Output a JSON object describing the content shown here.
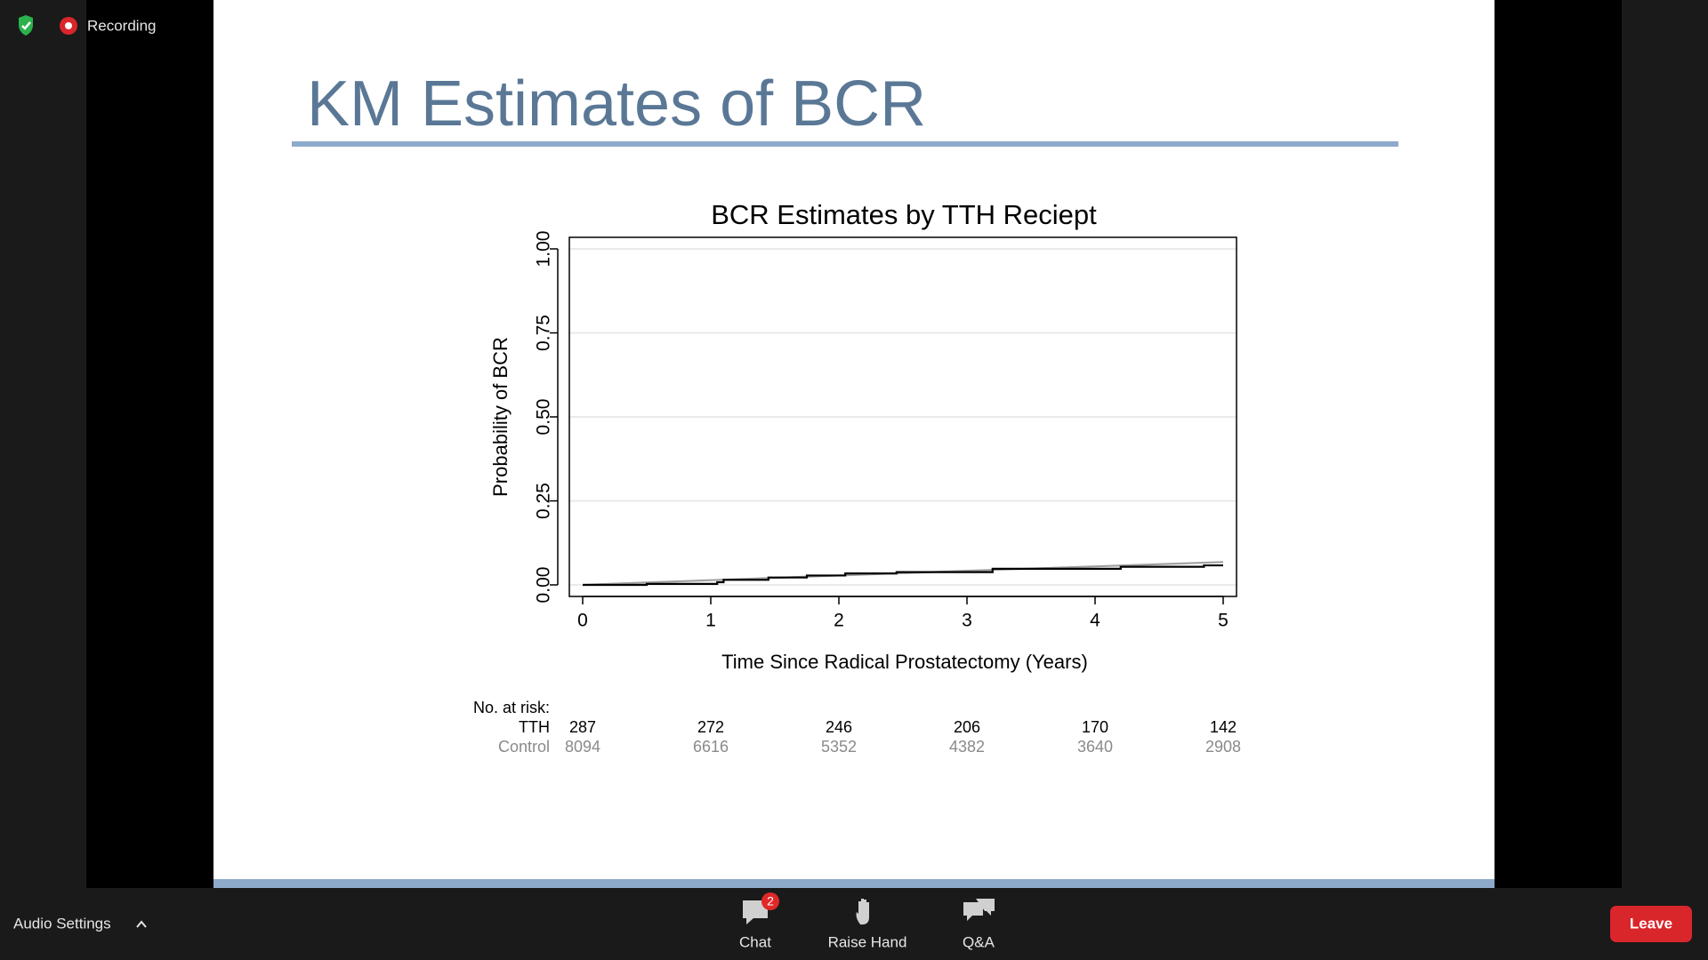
{
  "toolbar": {
    "recording": "Recording",
    "audio": "Audio Settings",
    "chat": "Chat",
    "chat_badge": 2,
    "raise_hand": "Raise Hand",
    "qa": "Q&A",
    "leave": "Leave"
  },
  "slide": {
    "title": "KM Estimates of BCR"
  },
  "risk_heading": "No. at risk:",
  "chart_data": {
    "type": "line",
    "title": "BCR Estimates by TTH Reciept",
    "x_label": "Time Since Radical Prostatectomy (Years)",
    "y_label": "Probability of BCR",
    "xlim": [
      0,
      5
    ],
    "xticks": [
      0,
      1,
      2,
      3,
      4,
      5
    ],
    "ylim": [
      0,
      1
    ],
    "yticks": [
      {
        "value": 0,
        "label": "0.00"
      },
      {
        "value": 0.25,
        "label": "0.25"
      },
      {
        "value": 0.5,
        "label": "0.50"
      },
      {
        "value": 0.75,
        "label": "0.75"
      },
      {
        "value": 1,
        "label": "1.00"
      }
    ],
    "grid": true,
    "series": [
      {
        "name": "TTH",
        "color": "#000000",
        "step": true,
        "x": [
          0,
          0.5,
          1.05,
          1.1,
          1.45,
          1.75,
          2.05,
          2.45,
          3.2,
          4.2,
          4.85,
          5
        ],
        "values": [
          0,
          0.003,
          0.008,
          0.015,
          0.022,
          0.028,
          0.034,
          0.038,
          0.048,
          0.054,
          0.058,
          0.058
        ],
        "at_risk": [
          287,
          272,
          246,
          206,
          170,
          142
        ]
      },
      {
        "name": "Control",
        "color": "#a0a0a0",
        "step": false,
        "x": [
          0,
          1,
          2,
          3,
          4,
          5
        ],
        "values": [
          0,
          0.014,
          0.028,
          0.042,
          0.055,
          0.068
        ],
        "at_risk": [
          8094,
          6616,
          5352,
          4382,
          3640,
          2908
        ]
      }
    ]
  }
}
